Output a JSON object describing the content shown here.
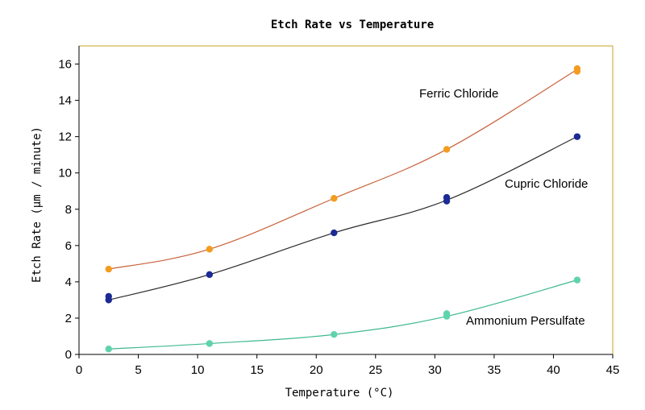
{
  "chart_data": {
    "type": "scatter",
    "title": "Etch Rate vs Temperature",
    "xlabel": "Temperature (°C)",
    "ylabel": "Etch Rate (µm / minute)",
    "xlim": [
      0,
      45
    ],
    "ylim": [
      0,
      17
    ],
    "xticks": [
      0,
      5,
      10,
      15,
      20,
      25,
      30,
      35,
      40,
      45
    ],
    "yticks": [
      0,
      2,
      4,
      6,
      8,
      10,
      12,
      14,
      16
    ],
    "grid": false,
    "legend": "none",
    "series": [
      {
        "name": "Ferric Chloride",
        "color": "#f39c1f",
        "line_color": "#c8623a",
        "points": [
          {
            "x": 2.5,
            "y": 4.7
          },
          {
            "x": 11,
            "y": 5.8
          },
          {
            "x": 21.5,
            "y": 8.6
          },
          {
            "x": 31,
            "y": 11.3
          },
          {
            "x": 42,
            "y": 15.6
          },
          {
            "x": 42,
            "y": 15.75
          }
        ],
        "line": [
          {
            "x": 2.5,
            "y": 4.7
          },
          {
            "x": 11,
            "y": 5.8
          },
          {
            "x": 21.5,
            "y": 8.6
          },
          {
            "x": 31,
            "y": 11.3
          },
          {
            "x": 42,
            "y": 15.7
          }
        ]
      },
      {
        "name": "Cupric Chloride",
        "color": "#1b2a94",
        "line_color": "#2b2b2b",
        "points": [
          {
            "x": 2.5,
            "y": 3.0
          },
          {
            "x": 2.5,
            "y": 3.2
          },
          {
            "x": 11,
            "y": 4.4
          },
          {
            "x": 21.5,
            "y": 6.7
          },
          {
            "x": 31,
            "y": 8.45
          },
          {
            "x": 31,
            "y": 8.65
          },
          {
            "x": 42,
            "y": 12.0
          }
        ],
        "line": [
          {
            "x": 2.5,
            "y": 3.0
          },
          {
            "x": 11,
            "y": 4.4
          },
          {
            "x": 21.5,
            "y": 6.7
          },
          {
            "x": 31,
            "y": 8.5
          },
          {
            "x": 42,
            "y": 12.0
          }
        ]
      },
      {
        "name": "Ammonium Persulfate",
        "color": "#5fd3ad",
        "line_color": "#3fb893",
        "points": [
          {
            "x": 2.5,
            "y": 0.3
          },
          {
            "x": 11,
            "y": 0.6
          },
          {
            "x": 21.5,
            "y": 1.1
          },
          {
            "x": 31,
            "y": 2.1
          },
          {
            "x": 31,
            "y": 2.25
          },
          {
            "x": 42,
            "y": 4.1
          }
        ],
        "line": [
          {
            "x": 2.5,
            "y": 0.3
          },
          {
            "x": 11,
            "y": 0.6
          },
          {
            "x": 21.5,
            "y": 1.1
          },
          {
            "x": 31,
            "y": 2.1
          },
          {
            "x": 42,
            "y": 4.1
          }
        ]
      }
    ],
    "annotations": [
      {
        "text": "Ferric Chloride",
        "series": 0
      },
      {
        "text": "Cupric Chloride",
        "series": 1
      },
      {
        "text": "Ammonium Persulfate",
        "series": 2
      }
    ],
    "frame_color": "#c9a227",
    "axis_color": "#000000"
  }
}
